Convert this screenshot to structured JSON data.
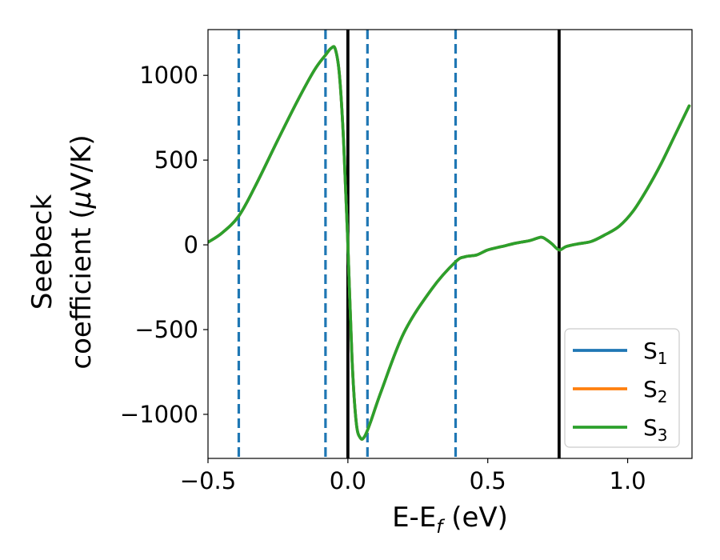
{
  "chart_data": {
    "type": "line",
    "xlabel": {
      "main": "E-E",
      "sub": "f",
      "suffix": " (eV)"
    },
    "ylabel": {
      "line1": "Seebeck",
      "line2_prefix": "coefficient  (",
      "line2_mu": "μ",
      "line2_suffix": "V/K)"
    },
    "xlim": [
      -0.5,
      1.23
    ],
    "ylim": [
      -1260,
      1270
    ],
    "x_ticks": [
      {
        "value": -0.5,
        "label": "−0.5"
      },
      {
        "value": 0.0,
        "label": "0.0"
      },
      {
        "value": 0.5,
        "label": "0.5"
      },
      {
        "value": 1.0,
        "label": "1.0"
      }
    ],
    "y_ticks": [
      {
        "value": -1000,
        "label": "−1000"
      },
      {
        "value": -500,
        "label": "−500"
      },
      {
        "value": 0,
        "label": "0"
      },
      {
        "value": 500,
        "label": "500"
      },
      {
        "value": 1000,
        "label": "1000"
      }
    ],
    "grid": false,
    "legend": {
      "placement": "bottom-right",
      "entries": [
        {
          "base": "S",
          "sub": "1",
          "color": "#1f77b4"
        },
        {
          "base": "S",
          "sub": "2",
          "color": "#ff7f0e"
        },
        {
          "base": "S",
          "sub": "3",
          "color": "#2ca02c"
        }
      ]
    },
    "vertical_lines": [
      {
        "x": -0.39,
        "style": "dashed",
        "color": "#1f77b4"
      },
      {
        "x": -0.08,
        "style": "dashed",
        "color": "#1f77b4"
      },
      {
        "x": 0.07,
        "style": "dashed",
        "color": "#1f77b4"
      },
      {
        "x": 0.385,
        "style": "dashed",
        "color": "#1f77b4"
      },
      {
        "x": 0.0,
        "style": "solid",
        "color": "#000000"
      },
      {
        "x": 0.755,
        "style": "solid",
        "color": "#000000"
      }
    ],
    "series": [
      {
        "name": "S1",
        "color": "#1f77b4",
        "x": [
          -0.5,
          -0.45,
          -0.39,
          -0.33,
          -0.25,
          -0.18,
          -0.12,
          -0.08,
          -0.06,
          -0.045,
          -0.03,
          -0.015,
          0.0,
          0.015,
          0.03,
          0.045,
          0.06,
          0.08,
          0.12,
          0.2,
          0.3,
          0.385,
          0.42,
          0.46,
          0.5,
          0.55,
          0.6,
          0.65,
          0.69,
          0.71,
          0.73,
          0.755,
          0.78,
          0.82,
          0.87,
          0.92,
          0.97,
          1.02,
          1.07,
          1.12,
          1.17,
          1.22
        ],
        "y": [
          15,
          70,
          170,
          350,
          620,
          850,
          1030,
          1120,
          1160,
          1155,
          1000,
          600,
          0,
          -680,
          -1050,
          -1140,
          -1130,
          -1050,
          -860,
          -520,
          -260,
          -100,
          -70,
          -60,
          -30,
          -10,
          10,
          25,
          45,
          30,
          5,
          -30,
          -10,
          5,
          20,
          60,
          110,
          200,
          330,
          480,
          650,
          820
        ]
      },
      {
        "name": "S2",
        "color": "#ff7f0e",
        "x": [
          -0.5,
          -0.45,
          -0.39,
          -0.33,
          -0.25,
          -0.18,
          -0.12,
          -0.08,
          -0.06,
          -0.045,
          -0.03,
          -0.015,
          0.0,
          0.015,
          0.03,
          0.045,
          0.06,
          0.08,
          0.12,
          0.2,
          0.3,
          0.385,
          0.42,
          0.46,
          0.5,
          0.55,
          0.6,
          0.65,
          0.69,
          0.71,
          0.73,
          0.755,
          0.78,
          0.82,
          0.87,
          0.92,
          0.97,
          1.02,
          1.07,
          1.12,
          1.17,
          1.22
        ],
        "y": [
          15,
          70,
          170,
          350,
          620,
          850,
          1030,
          1120,
          1160,
          1155,
          1000,
          600,
          0,
          -680,
          -1050,
          -1140,
          -1130,
          -1050,
          -860,
          -520,
          -260,
          -100,
          -70,
          -60,
          -30,
          -10,
          10,
          25,
          45,
          30,
          5,
          -30,
          -10,
          5,
          20,
          60,
          110,
          200,
          330,
          480,
          650,
          820
        ]
      },
      {
        "name": "S3",
        "color": "#2ca02c",
        "x": [
          -0.5,
          -0.45,
          -0.39,
          -0.33,
          -0.25,
          -0.18,
          -0.12,
          -0.08,
          -0.06,
          -0.045,
          -0.03,
          -0.015,
          0.0,
          0.015,
          0.03,
          0.045,
          0.06,
          0.08,
          0.12,
          0.2,
          0.3,
          0.385,
          0.42,
          0.46,
          0.5,
          0.55,
          0.6,
          0.65,
          0.69,
          0.71,
          0.73,
          0.755,
          0.78,
          0.82,
          0.87,
          0.92,
          0.97,
          1.02,
          1.07,
          1.12,
          1.17,
          1.22
        ],
        "y": [
          15,
          70,
          170,
          350,
          620,
          850,
          1030,
          1120,
          1160,
          1155,
          1000,
          600,
          0,
          -680,
          -1050,
          -1140,
          -1130,
          -1050,
          -860,
          -520,
          -260,
          -100,
          -70,
          -60,
          -30,
          -10,
          10,
          25,
          45,
          30,
          5,
          -30,
          -10,
          5,
          20,
          60,
          110,
          200,
          330,
          480,
          650,
          820
        ]
      }
    ]
  }
}
